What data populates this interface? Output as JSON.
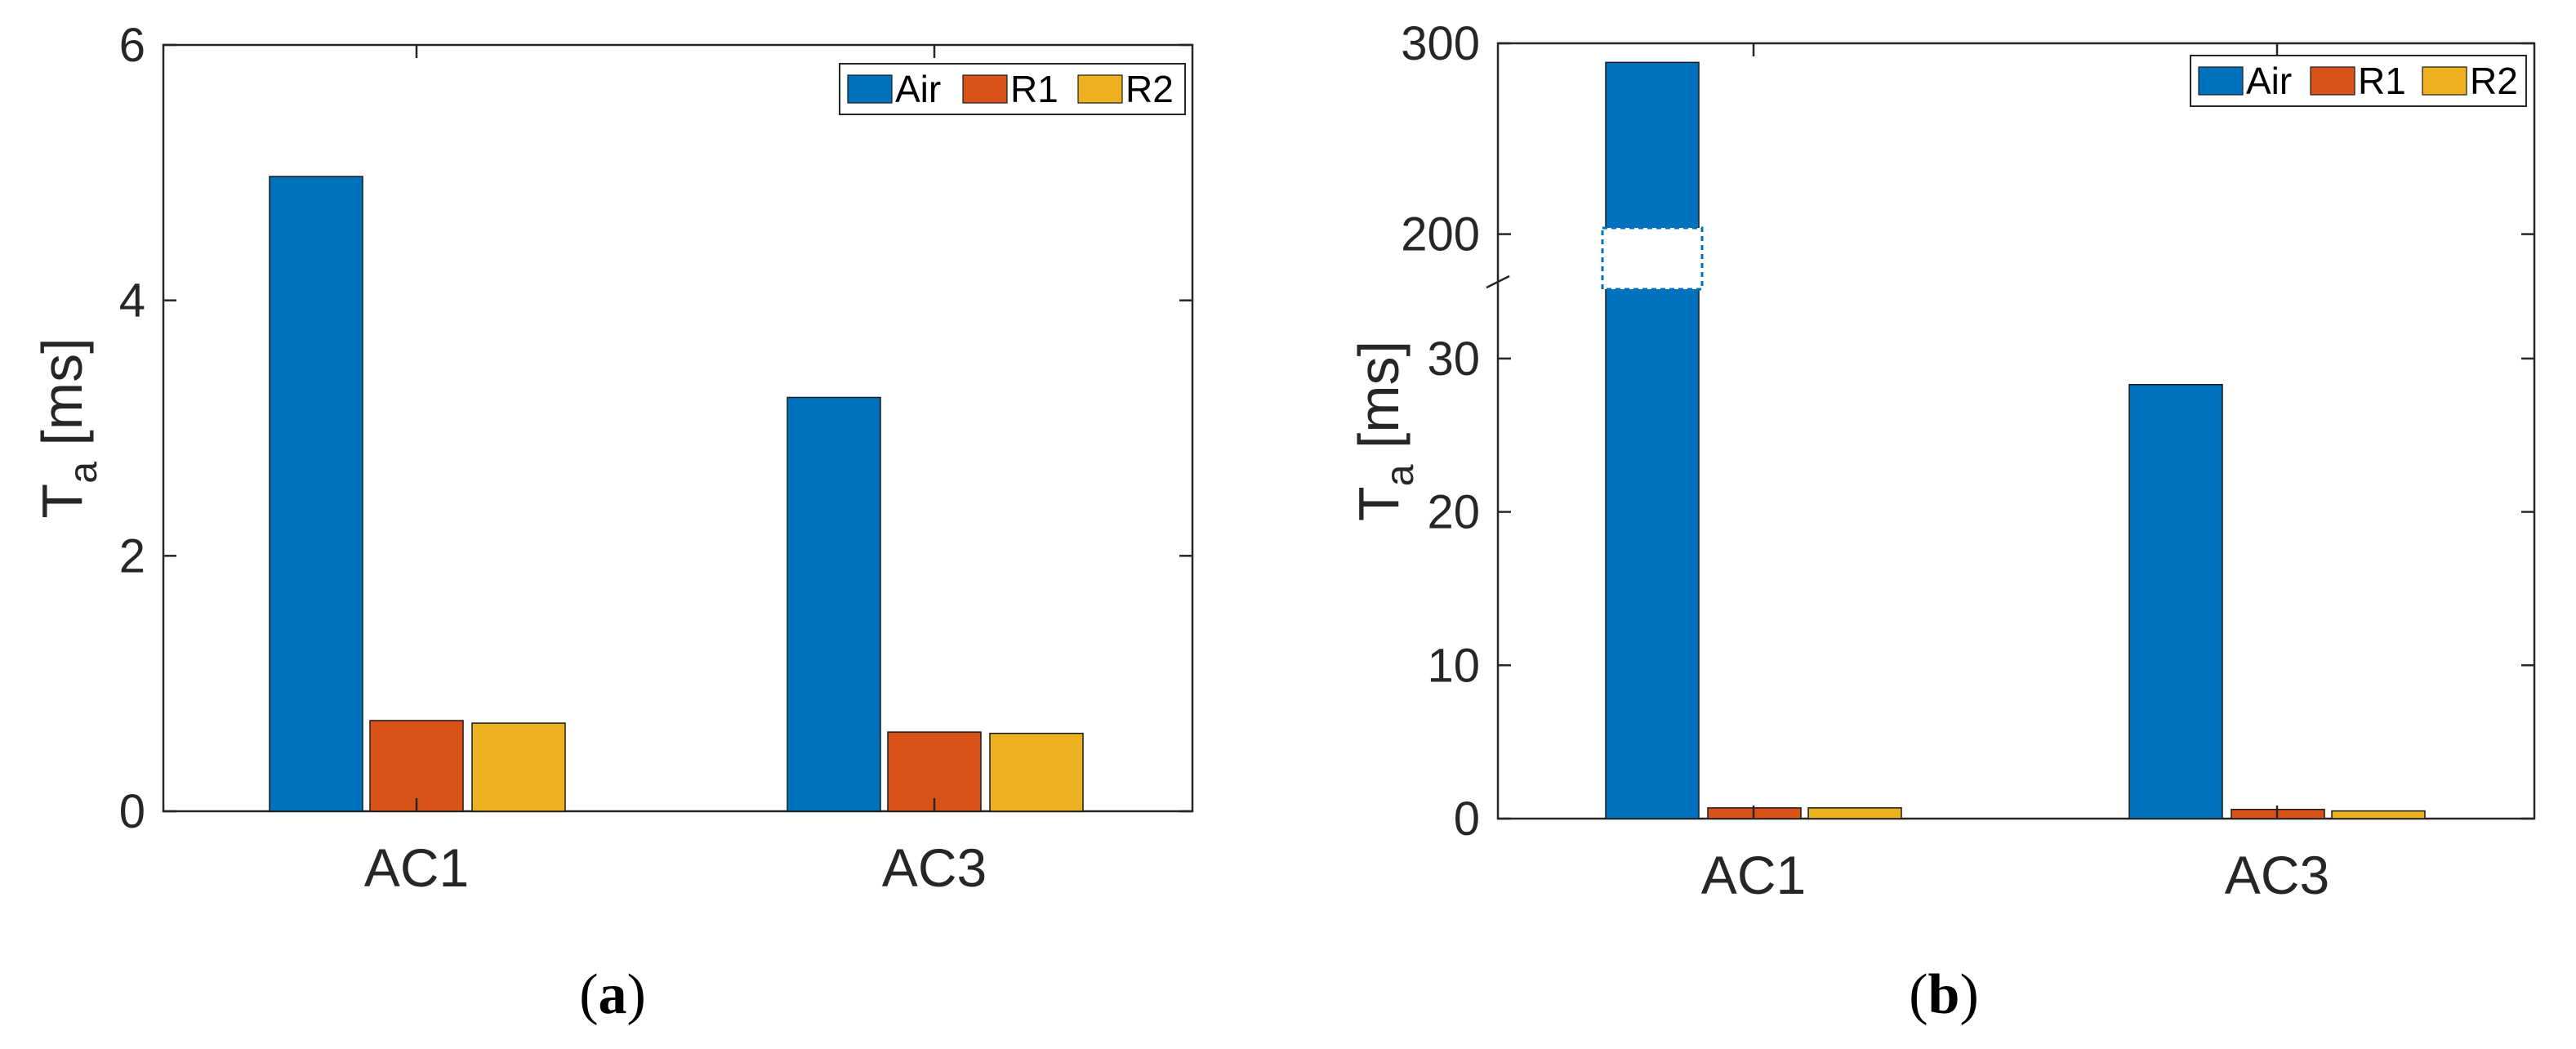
{
  "chart_data": [
    {
      "type": "bar",
      "panel_label": [
        "(",
        "a",
        ")"
      ],
      "categories": [
        "AC1",
        "AC3"
      ],
      "series": [
        {
          "name": "Air",
          "values": [
            4.97,
            3.24
          ],
          "color": "#0072BD"
        },
        {
          "name": "R1",
          "values": [
            0.71,
            0.62
          ],
          "color": "#D95319"
        },
        {
          "name": "R2",
          "values": [
            0.69,
            0.61
          ],
          "color": "#EDB120"
        }
      ],
      "ylabel": {
        "main": "T",
        "sub": "a",
        "rest": " [ms]"
      },
      "ylim": [
        0,
        6
      ],
      "yticks": [
        "0",
        "2",
        "4",
        "6"
      ],
      "legend": "top-right",
      "grid": false
    },
    {
      "type": "bar",
      "panel_label": [
        "(",
        "b",
        ")"
      ],
      "categories": [
        "AC1",
        "AC3"
      ],
      "series": [
        {
          "name": "Air",
          "values": [
            290,
            28.3
          ],
          "color": "#0072BD"
        },
        {
          "name": "R1",
          "values": [
            0.7,
            0.6
          ],
          "color": "#D95319"
        },
        {
          "name": "R2",
          "values": [
            0.7,
            0.5
          ],
          "color": "#EDB120"
        }
      ],
      "ylabel": {
        "main": "T",
        "sub": "a",
        "rest": " [ms]"
      },
      "axis_break": [
        35,
        175
      ],
      "yticks": [
        "0",
        "10",
        "20",
        "30",
        "200",
        "300"
      ],
      "legend": "top-right",
      "grid": false
    }
  ]
}
